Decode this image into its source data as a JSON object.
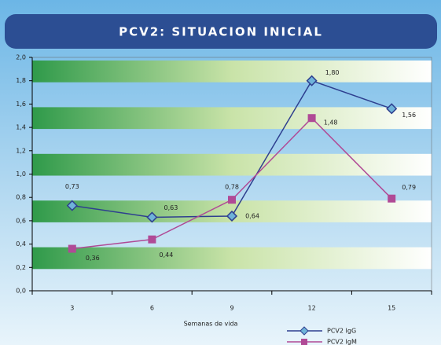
{
  "chart_data": {
    "type": "line",
    "title": "PCV2: SITUACION INICIAL",
    "x_label": "Semanas de vida",
    "categories": [
      "3",
      "6",
      "9",
      "12",
      "15"
    ],
    "ylim": [
      0,
      2
    ],
    "yticks": [
      {
        "value": 0,
        "label": "0,0"
      },
      {
        "value": 0.2,
        "label": "0,2"
      },
      {
        "value": 0.4,
        "label": "0,4"
      },
      {
        "value": 0.6,
        "label": "0,6"
      },
      {
        "value": 0.8,
        "label": "0,8"
      },
      {
        "value": 1.0,
        "label": "1,0"
      },
      {
        "value": 1.2,
        "label": "1,2"
      },
      {
        "value": 1.4,
        "label": "1,4"
      },
      {
        "value": 1.6,
        "label": "1,6"
      },
      {
        "value": 1.8,
        "label": "1,8"
      },
      {
        "value": 2.0,
        "label": "2,0"
      }
    ],
    "series": [
      {
        "name": "PCV2 IgG",
        "color": "#2e3f8f",
        "marker": "diamond",
        "values": [
          0.73,
          0.63,
          0.64,
          1.8,
          1.56
        ],
        "value_labels": [
          "0,73",
          "0,63",
          "0,64",
          "1,80",
          "1,56"
        ]
      },
      {
        "name": "PCV2 IgM",
        "color": "#b04a96",
        "marker": "square",
        "values": [
          0.36,
          0.44,
          0.78,
          1.48,
          0.79
        ],
        "value_labels": [
          "0,36",
          "0,44",
          "0,78",
          "1,48",
          "0,79"
        ]
      }
    ]
  }
}
